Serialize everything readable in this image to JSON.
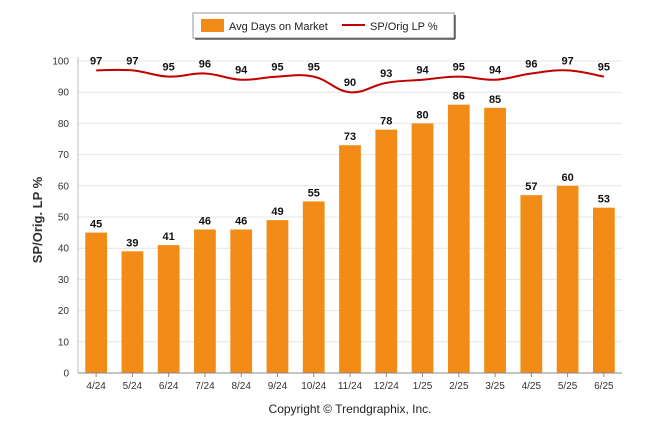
{
  "chart_data": {
    "type": "bar",
    "categories": [
      "4/24",
      "5/24",
      "6/24",
      "7/24",
      "8/24",
      "9/24",
      "10/24",
      "11/24",
      "12/24",
      "1/25",
      "2/25",
      "3/25",
      "4/25",
      "5/25",
      "6/25"
    ],
    "series": [
      {
        "name": "Avg Days on Market",
        "type": "bar",
        "color": "#f28c17",
        "values": [
          45,
          39,
          41,
          46,
          46,
          49,
          55,
          73,
          78,
          80,
          86,
          85,
          57,
          60,
          53
        ]
      },
      {
        "name": "SP/Orig LP %",
        "type": "line",
        "color": "#c00000",
        "values": [
          97,
          97,
          95,
          96,
          94,
          95,
          95,
          90,
          93,
          94,
          95,
          94,
          96,
          97,
          95
        ]
      }
    ],
    "ylabel": "SP/Orig. LP %",
    "xlabel": "",
    "ylim": [
      0,
      100
    ],
    "yticks": [
      0,
      10,
      20,
      30,
      40,
      50,
      60,
      70,
      80,
      90,
      100
    ],
    "grid": true,
    "legend": "top-center"
  },
  "footer": {
    "copyright": "Copyright © Trendgraphix, Inc."
  }
}
